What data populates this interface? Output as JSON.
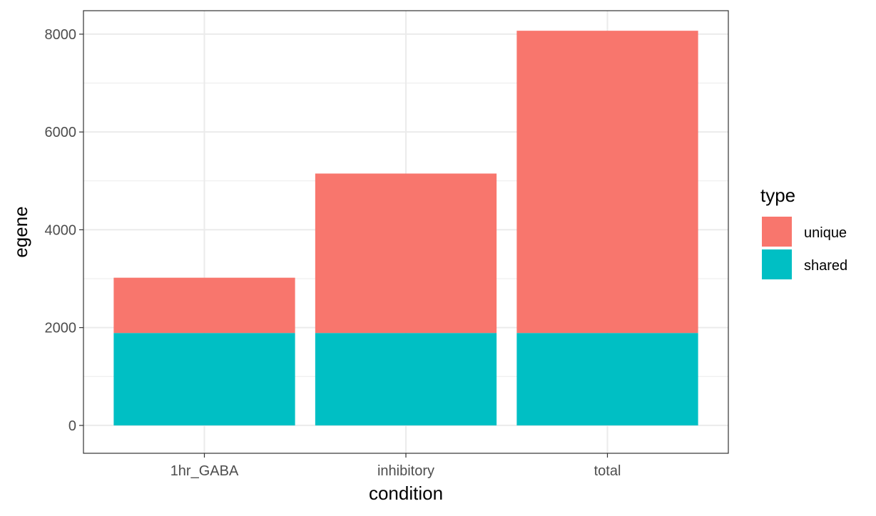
{
  "chart_data": {
    "type": "bar",
    "stacked": true,
    "categories": [
      "1hr_GABA",
      "inhibitory",
      "total"
    ],
    "series": [
      {
        "name": "shared",
        "values": [
          1890,
          1890,
          1890
        ],
        "color": "#00BFC4"
      },
      {
        "name": "unique",
        "values": [
          1130,
          3260,
          6180
        ],
        "color": "#F8766D"
      }
    ],
    "xlabel": "condition",
    "ylabel": "egene",
    "ylim": [
      -570,
      8480
    ],
    "yticks": [
      0,
      2000,
      4000,
      6000,
      8000
    ],
    "ytick_labels": [
      "0",
      "2000",
      "4000",
      "6000",
      "8000"
    ],
    "grid": true,
    "legend": {
      "title": "type",
      "position": "right",
      "entries": [
        {
          "label": "unique",
          "color": "#F8766D"
        },
        {
          "label": "shared",
          "color": "#00BFC4"
        }
      ]
    },
    "theme_colors": {
      "panel_border": "#333333",
      "grid": "#ebebeb",
      "tick_text": "#4d4d4d"
    }
  }
}
